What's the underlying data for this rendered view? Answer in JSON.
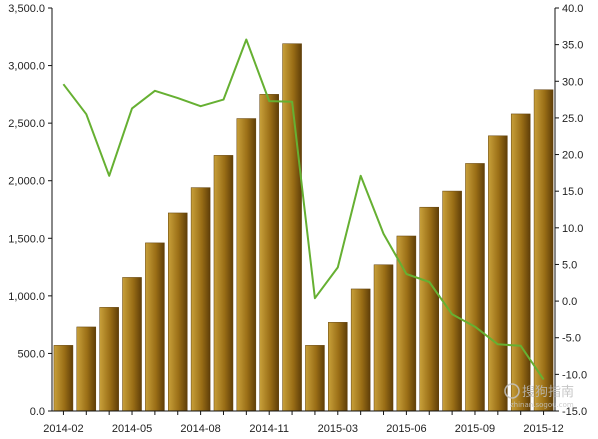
{
  "chart_data": {
    "type": "bar",
    "categories": [
      "2014-02",
      "2014-03",
      "2014-04",
      "2014-05",
      "2014-06",
      "2014-07",
      "2014-08",
      "2014-09",
      "2014-10",
      "2014-11",
      "2014-12",
      "2015-02",
      "2015-03",
      "2015-04",
      "2015-05",
      "2015-06",
      "2015-07",
      "2015-08",
      "2015-09",
      "2015-10",
      "2015-11",
      "2015-12"
    ],
    "x_tick_labels": [
      "2014-02",
      "2014-05",
      "2014-08",
      "2014-11",
      "2015-03",
      "2015-06",
      "2015-09",
      "2015-12"
    ],
    "series": [
      {
        "type": "bar",
        "axis": "left",
        "values": [
          570,
          730,
          900,
          1160,
          1460,
          1720,
          1940,
          2220,
          2540,
          2750,
          3190,
          570,
          770,
          1060,
          1270,
          1520,
          1770,
          1910,
          2150,
          2390,
          2580,
          2790
        ]
      },
      {
        "type": "line",
        "axis": "right",
        "values": [
          29.6,
          25.5,
          17.1,
          26.3,
          28.7,
          27.7,
          26.6,
          27.5,
          35.7,
          27.3,
          27.2,
          0.4,
          4.6,
          17.1,
          9.2,
          3.7,
          2.6,
          -1.8,
          -3.5,
          -5.9,
          -6.1,
          -10.7
        ]
      }
    ],
    "y_left": {
      "min": 0,
      "max": 3500,
      "step": 500,
      "ticks": [
        "0.0",
        "500.0",
        "1,000.0",
        "1,500.0",
        "2,000.0",
        "2,500.0",
        "3,000.0",
        "3,500.0"
      ]
    },
    "y_right": {
      "min": -15,
      "max": 40,
      "step": 5,
      "ticks": [
        "-15.0",
        "-10.0",
        "-5.0",
        "0.0",
        "5.0",
        "10.0",
        "15.0",
        "20.0",
        "25.0",
        "30.0",
        "35.0",
        "40.0"
      ]
    },
    "grid": false,
    "legend": "none",
    "colors": {
      "bar_light": "#c8a03a",
      "bar_mid": "#9a6e16",
      "bar_dark": "#5f3e08",
      "line": "#66b032",
      "axis": "#111111"
    }
  },
  "watermark": {
    "text": "搜狗指南",
    "sub": "zhinan.sogou.com"
  }
}
